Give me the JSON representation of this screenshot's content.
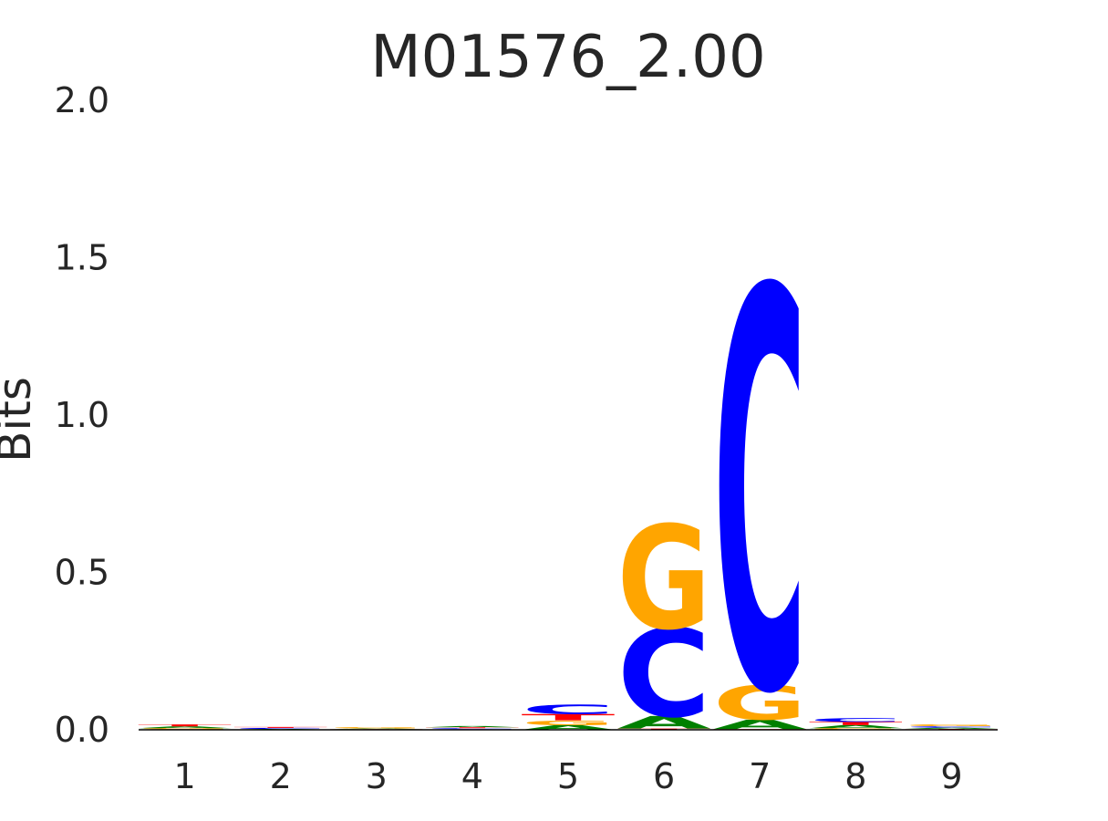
{
  "chart_data": {
    "type": "sequence_logo",
    "title": "M01576_2.00",
    "y_label": "Bits",
    "categories": [
      "1",
      "2",
      "3",
      "4",
      "5",
      "6",
      "7",
      "8",
      "9"
    ],
    "series": [
      {
        "name": "A",
        "color": "#008000",
        "values": [
          0.006,
          0.002,
          0.002,
          0.004,
          0.015,
          0.04,
          0.03,
          0.01,
          0.004
        ]
      },
      {
        "name": "C",
        "color": "#0000ff",
        "values": [
          0.002,
          0.003,
          0.001,
          0.003,
          0.03,
          0.28,
          1.27,
          0.012,
          0.004
        ]
      },
      {
        "name": "G",
        "color": "#ffa500",
        "values": [
          0.003,
          0.001,
          0.003,
          0.002,
          0.015,
          0.33,
          0.11,
          0.005,
          0.006
        ]
      },
      {
        "name": "T",
        "color": "#ff0000",
        "values": [
          0.006,
          0.003,
          0.001,
          0.003,
          0.02,
          0.004,
          0.002,
          0.01,
          0.003
        ]
      }
    ],
    "ylim": [
      0,
      2
    ],
    "yticks": [
      {
        "value": 0,
        "label": "0.0"
      },
      {
        "value": 0.5,
        "label": "0.5"
      },
      {
        "value": 1,
        "label": "1.0"
      },
      {
        "value": 1.5,
        "label": "1.5"
      },
      {
        "value": 2,
        "label": "2.0"
      }
    ]
  }
}
